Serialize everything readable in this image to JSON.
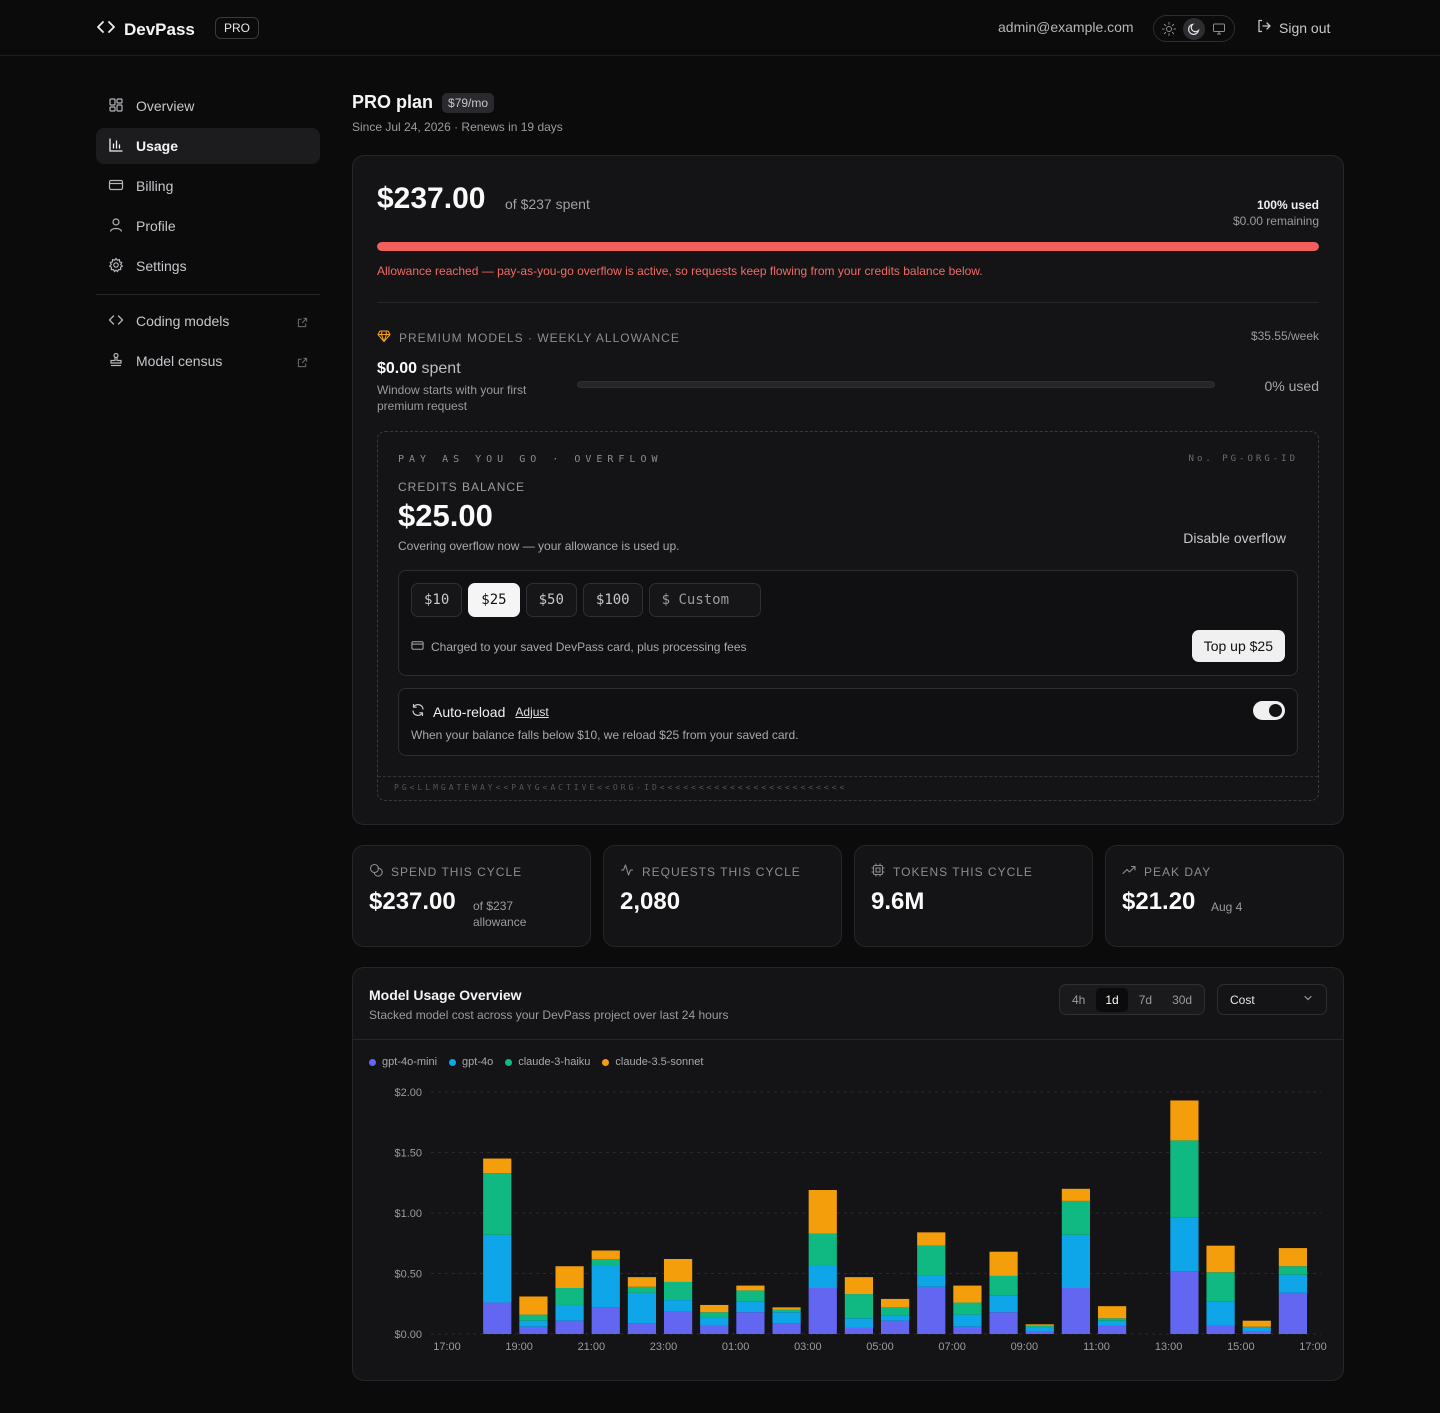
{
  "header": {
    "brand": "DevPass",
    "badge": "PRO",
    "email": "admin@example.com",
    "sign_out": "Sign out",
    "theme_options": [
      "sun-icon",
      "moon-icon",
      "monitor-icon"
    ],
    "theme_selected": "moon-icon"
  },
  "sidebar": {
    "items": [
      {
        "label": "Overview",
        "icon": "grid-icon"
      },
      {
        "label": "Usage",
        "icon": "bar-chart-icon"
      },
      {
        "label": "Billing",
        "icon": "credit-card-icon"
      },
      {
        "label": "Profile",
        "icon": "user-icon"
      },
      {
        "label": "Settings",
        "icon": "gear-icon"
      }
    ],
    "active": "Usage",
    "external": [
      {
        "label": "Coding models",
        "icon": "code-icon"
      },
      {
        "label": "Model census",
        "icon": "stamp-icon"
      }
    ]
  },
  "plan": {
    "title": "PRO plan",
    "price": "$79/mo",
    "subtitle": "Since Jul 24, 2026 · Renews in 19 days"
  },
  "allowance": {
    "spent": "$237.00",
    "of_spent": "of $237 spent",
    "used_pct_label": "100% used",
    "remaining": "$0.00 remaining",
    "used_fraction": 1.0,
    "message": "Allowance reached — pay-as-you-go overflow is active, so requests keep flowing from your credits balance below."
  },
  "premium": {
    "label": "PREMIUM MODELS · WEEKLY ALLOWANCE",
    "rate": "$35.55/week",
    "spent_amount": "$0.00",
    "spent_suffix": "spent",
    "note": "Window starts with your first premium request",
    "used_label": "0% used",
    "used_fraction": 0
  },
  "payg": {
    "heading": "PAY AS YOU GO · OVERFLOW",
    "number": "No. PG-ORG-ID",
    "credits_label": "CREDITS BALANCE",
    "credits_amount": "$25.00",
    "credits_note": "Covering overflow now — your allowance is used up.",
    "disable_label": "Disable overflow",
    "amounts": [
      "$10",
      "$25",
      "$50",
      "$100"
    ],
    "selected_amount": "$25",
    "custom_placeholder": "$ Custom",
    "charged_note": "Charged to your saved DevPass card, plus processing fees",
    "topup_label": "Top up $25",
    "auto_reload_title": "Auto-reload",
    "adjust_label": "Adjust",
    "auto_reload_desc": "When your balance falls below $10, we reload $25 from your saved card.",
    "auto_reload_on": true,
    "mrz": "PG<LLMGATEWAY<<PAYG<ACTIVE<<ORG-ID<<<<<<<<<<<<<<<<<<<<<<<<"
  },
  "stats": [
    {
      "label": "SPEND THIS CYCLE",
      "icon": "coins-icon",
      "value": "$237.00",
      "extra": "of $237 allowance"
    },
    {
      "label": "REQUESTS THIS CYCLE",
      "icon": "activity-icon",
      "value": "2,080",
      "extra": ""
    },
    {
      "label": "TOKENS THIS CYCLE",
      "icon": "chip-icon",
      "value": "9.6M",
      "extra": ""
    },
    {
      "label": "PEAK DAY",
      "icon": "trending-up-icon",
      "value": "$21.20",
      "extra": "Aug 4"
    }
  ],
  "usage_chart": {
    "title": "Model Usage Overview",
    "subtitle": "Stacked model cost across your DevPass project over last 24 hours",
    "ranges": [
      "4h",
      "1d",
      "7d",
      "30d"
    ],
    "selected_range": "1d",
    "metric": "Cost"
  },
  "chart_data": {
    "type": "bar",
    "stacked": true,
    "x_tick_labels": [
      "17:00",
      "19:00",
      "21:00",
      "23:00",
      "01:00",
      "03:00",
      "05:00",
      "07:00",
      "09:00",
      "11:00",
      "13:00",
      "15:00",
      "17:00"
    ],
    "y_tick_labels": [
      "$0.00",
      "$0.50",
      "$1.00",
      "$1.50",
      "$2.00"
    ],
    "ylim": [
      0,
      2
    ],
    "grid": true,
    "legend_position": "top-left",
    "colors": {
      "gpt-4o-mini": "#6366f1",
      "gpt-4o": "#0ea5e9",
      "claude-3-haiku": "#10b981",
      "claude-3.5-sonnet": "#f59e0b"
    },
    "series": [
      {
        "name": "gpt-4o-mini",
        "values": [
          0.26,
          0.06,
          0.11,
          0.22,
          0.09,
          0.19,
          0.07,
          0.18,
          0.09,
          0.38,
          0.05,
          0.11,
          0.39,
          0.06,
          0.18,
          0.02,
          0.38,
          0.07,
          0.52,
          0.07,
          0.02,
          0.34
        ]
      },
      {
        "name": "gpt-4o",
        "values": [
          0.56,
          0.05,
          0.13,
          0.35,
          0.25,
          0.09,
          0.07,
          0.09,
          0.09,
          0.19,
          0.08,
          0.04,
          0.09,
          0.1,
          0.14,
          0.03,
          0.44,
          0.04,
          0.44,
          0.2,
          0.03,
          0.15
        ]
      },
      {
        "name": "claude-3-haiku",
        "values": [
          0.51,
          0.05,
          0.14,
          0.05,
          0.05,
          0.15,
          0.04,
          0.09,
          0.02,
          0.26,
          0.2,
          0.07,
          0.25,
          0.1,
          0.16,
          0.02,
          0.28,
          0.02,
          0.64,
          0.24,
          0.01,
          0.07
        ]
      },
      {
        "name": "claude-3.5-sonnet",
        "values": [
          0.12,
          0.15,
          0.18,
          0.07,
          0.08,
          0.19,
          0.06,
          0.04,
          0.02,
          0.36,
          0.14,
          0.07,
          0.11,
          0.14,
          0.2,
          0.01,
          0.1,
          0.1,
          0.33,
          0.22,
          0.05,
          0.15
        ]
      }
    ]
  }
}
